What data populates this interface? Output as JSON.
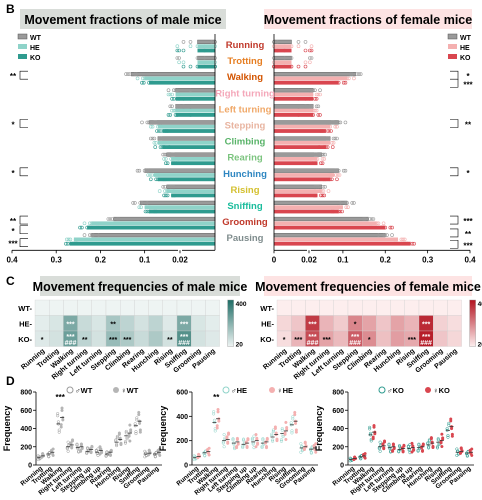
{
  "panel_letters": {
    "b": "B",
    "c": "C",
    "d": "D"
  },
  "colors": {
    "wt": "#9a9a9a",
    "he_male": "#8fd3c9",
    "ko_male": "#2f9b8f",
    "he_female": "#f4b0b0",
    "ko_female": "#d9464f",
    "male_title_bg": "#d9ddd9",
    "female_title_bg": "#fde3e3"
  },
  "panel_b": {
    "male_title": "Movement fractions of male mice",
    "female_title": "Movement fractions of female mice",
    "legend": [
      "WT",
      "HE",
      "KO"
    ],
    "behaviors": [
      {
        "name": "Running",
        "color": "#c0392b"
      },
      {
        "name": "Trotting",
        "color": "#e67e22"
      },
      {
        "name": "Walking",
        "color": "#d35400"
      },
      {
        "name": "Right turning",
        "color": "#f4a7b9"
      },
      {
        "name": "Left turning",
        "color": "#f0a868"
      },
      {
        "name": "Stepping",
        "color": "#e8b4a0"
      },
      {
        "name": "Climbing",
        "color": "#58b368"
      },
      {
        "name": "Rearing",
        "color": "#7cc47f"
      },
      {
        "name": "Hunching",
        "color": "#2e86c1"
      },
      {
        "name": "Rising",
        "color": "#d4c030"
      },
      {
        "name": "Sniffing",
        "color": "#1abc9c"
      },
      {
        "name": "Grooming",
        "color": "#c0392b"
      },
      {
        "name": "Pausing",
        "color": "#7f8c8d"
      }
    ],
    "male_ticks": [
      "0.4",
      "0.3",
      "0.2",
      "0.1",
      "0.02"
    ],
    "female_ticks": [
      "0",
      "0.02",
      "0.1",
      "0.2",
      "0.3",
      "0.4"
    ],
    "male_sig": [
      "**",
      "*",
      "*",
      "**",
      "*",
      "***"
    ],
    "female_sig": [
      "*",
      "***",
      "**",
      "*",
      "***",
      "**",
      "***"
    ],
    "chart_data": {
      "type": "bar",
      "categories": [
        "Running",
        "Trotting",
        "Walking",
        "Right turning",
        "Left turning",
        "Stepping",
        "Climbing",
        "Rearing",
        "Hunching",
        "Rising",
        "Sniffing",
        "Grooming",
        "Pausing"
      ],
      "male": {
        "WT": [
          0.01,
          0.01,
          0.13,
          0.03,
          0.03,
          0.09,
          0.07,
          0.05,
          0.1,
          0.05,
          0.11,
          0.17,
          0.22
        ],
        "HE": [
          0.01,
          0.01,
          0.1,
          0.03,
          0.03,
          0.07,
          0.07,
          0.04,
          0.08,
          0.05,
          0.1,
          0.22,
          0.26
        ],
        "KO": [
          0.01,
          0.01,
          0.09,
          0.03,
          0.03,
          0.06,
          0.06,
          0.04,
          0.07,
          0.04,
          0.09,
          0.23,
          0.27
        ]
      },
      "female": {
        "WT": [
          0.01,
          0.01,
          0.13,
          0.03,
          0.03,
          0.09,
          0.07,
          0.05,
          0.09,
          0.05,
          0.11,
          0.16,
          0.2
        ],
        "HE": [
          0.01,
          0.01,
          0.11,
          0.03,
          0.03,
          0.07,
          0.07,
          0.04,
          0.08,
          0.05,
          0.1,
          0.18,
          0.23
        ],
        "KO": [
          0.01,
          0.01,
          0.09,
          0.03,
          0.03,
          0.06,
          0.06,
          0.04,
          0.07,
          0.04,
          0.09,
          0.2,
          0.26
        ]
      }
    }
  },
  "panel_c": {
    "male_title": "Movement frequencies of male mice",
    "female_title": "Movement frequencies of female mice",
    "rows": [
      "WT",
      "HE",
      "KO"
    ],
    "columns": [
      "Running",
      "Trotting",
      "Walking",
      "Right turning",
      "Left turning",
      "Stepping",
      "Climbing",
      "Rearing",
      "Hunching",
      "Rising",
      "Sniffing",
      "Grooming",
      "Pausing"
    ],
    "male_scale": [
      "400",
      "20"
    ],
    "female_scale": [
      "400",
      "20"
    ],
    "chart_data": {
      "type": "heatmap",
      "male": [
        [
          20,
          20,
          20,
          20,
          20,
          20,
          20,
          20,
          20,
          20,
          20,
          20,
          20
        ],
        [
          40,
          60,
          230,
          90,
          60,
          150,
          110,
          70,
          110,
          50,
          230,
          60,
          40
        ],
        [
          50,
          70,
          260,
          110,
          70,
          180,
          140,
          90,
          140,
          70,
          300,
          70,
          50
        ]
      ],
      "female": [
        [
          20,
          20,
          20,
          20,
          20,
          20,
          20,
          20,
          20,
          20,
          20,
          20,
          20
        ],
        [
          60,
          90,
          330,
          120,
          80,
          200,
          150,
          90,
          150,
          120,
          360,
          70,
          50
        ],
        [
          50,
          120,
          300,
          150,
          110,
          270,
          190,
          100,
          160,
          140,
          380,
          90,
          60
        ]
      ],
      "male_marks": [
        [
          "",
          "",
          "",
          "",
          "",
          "",
          "",
          "",
          "",
          "",
          "",
          "",
          ""
        ],
        [
          "",
          "",
          "***",
          "",
          "",
          "**",
          "",
          "",
          "",
          "",
          "***",
          "",
          ""
        ],
        [
          "*",
          "",
          "***\n###",
          "**",
          "",
          "***",
          "***",
          "",
          "",
          "**",
          "***\n###",
          "",
          ""
        ]
      ],
      "female_marks": [
        [
          "",
          "",
          "",
          "",
          "",
          "",
          "",
          "",
          "",
          "",
          "",
          "",
          ""
        ],
        [
          "",
          "",
          "***",
          "",
          "",
          "*",
          "",
          "",
          "",
          "",
          "***",
          "",
          ""
        ],
        [
          "*",
          "***",
          "***\n###",
          "***",
          "",
          "***\n###",
          "*",
          "",
          "",
          "***",
          "***\n###",
          "",
          ""
        ]
      ]
    }
  },
  "panel_d": {
    "ylabel": "Frequency",
    "legend_left": [
      "♂WT",
      "♀WT"
    ],
    "legend_mid": [
      "♂HE",
      "♀HE"
    ],
    "legend_right": [
      "♂KO",
      "♀KO"
    ],
    "yticks_left": [
      "800",
      "600",
      "400",
      "200",
      "0"
    ],
    "yticks_mid": [
      "600",
      "400",
      "200",
      "0"
    ],
    "yticks_right": [
      "800",
      "600",
      "400",
      "200",
      "0"
    ],
    "categories": [
      "Running",
      "Trotting",
      "Walking",
      "Right turning",
      "Left turning",
      "Stepping up",
      "Climbing up",
      "Rearing",
      "Hunching",
      "Rising",
      "Sniffing",
      "Grooming",
      "Pausing"
    ],
    "sig_left": "***",
    "sig_mid": "**",
    "chart_data": {
      "type": "scatter",
      "WT": {
        "male": [
          80,
          120,
          450,
          200,
          190,
          150,
          140,
          120,
          250,
          320,
          430,
          120,
          120
        ],
        "female": [
          100,
          140,
          520,
          220,
          200,
          170,
          160,
          140,
          280,
          350,
          480,
          130,
          140
        ]
      },
      "HE": {
        "male": [
          60,
          100,
          350,
          200,
          180,
          170,
          190,
          180,
          230,
          260,
          330,
          140,
          130
        ],
        "female": [
          70,
          110,
          380,
          210,
          190,
          180,
          200,
          190,
          250,
          280,
          360,
          150,
          140
        ]
      },
      "KO": {
        "male": [
          60,
          90,
          330,
          200,
          190,
          170,
          180,
          190,
          220,
          250,
          380,
          140,
          130
        ],
        "female": [
          70,
          100,
          360,
          210,
          200,
          180,
          190,
          200,
          240,
          270,
          420,
          150,
          140
        ]
      }
    }
  }
}
